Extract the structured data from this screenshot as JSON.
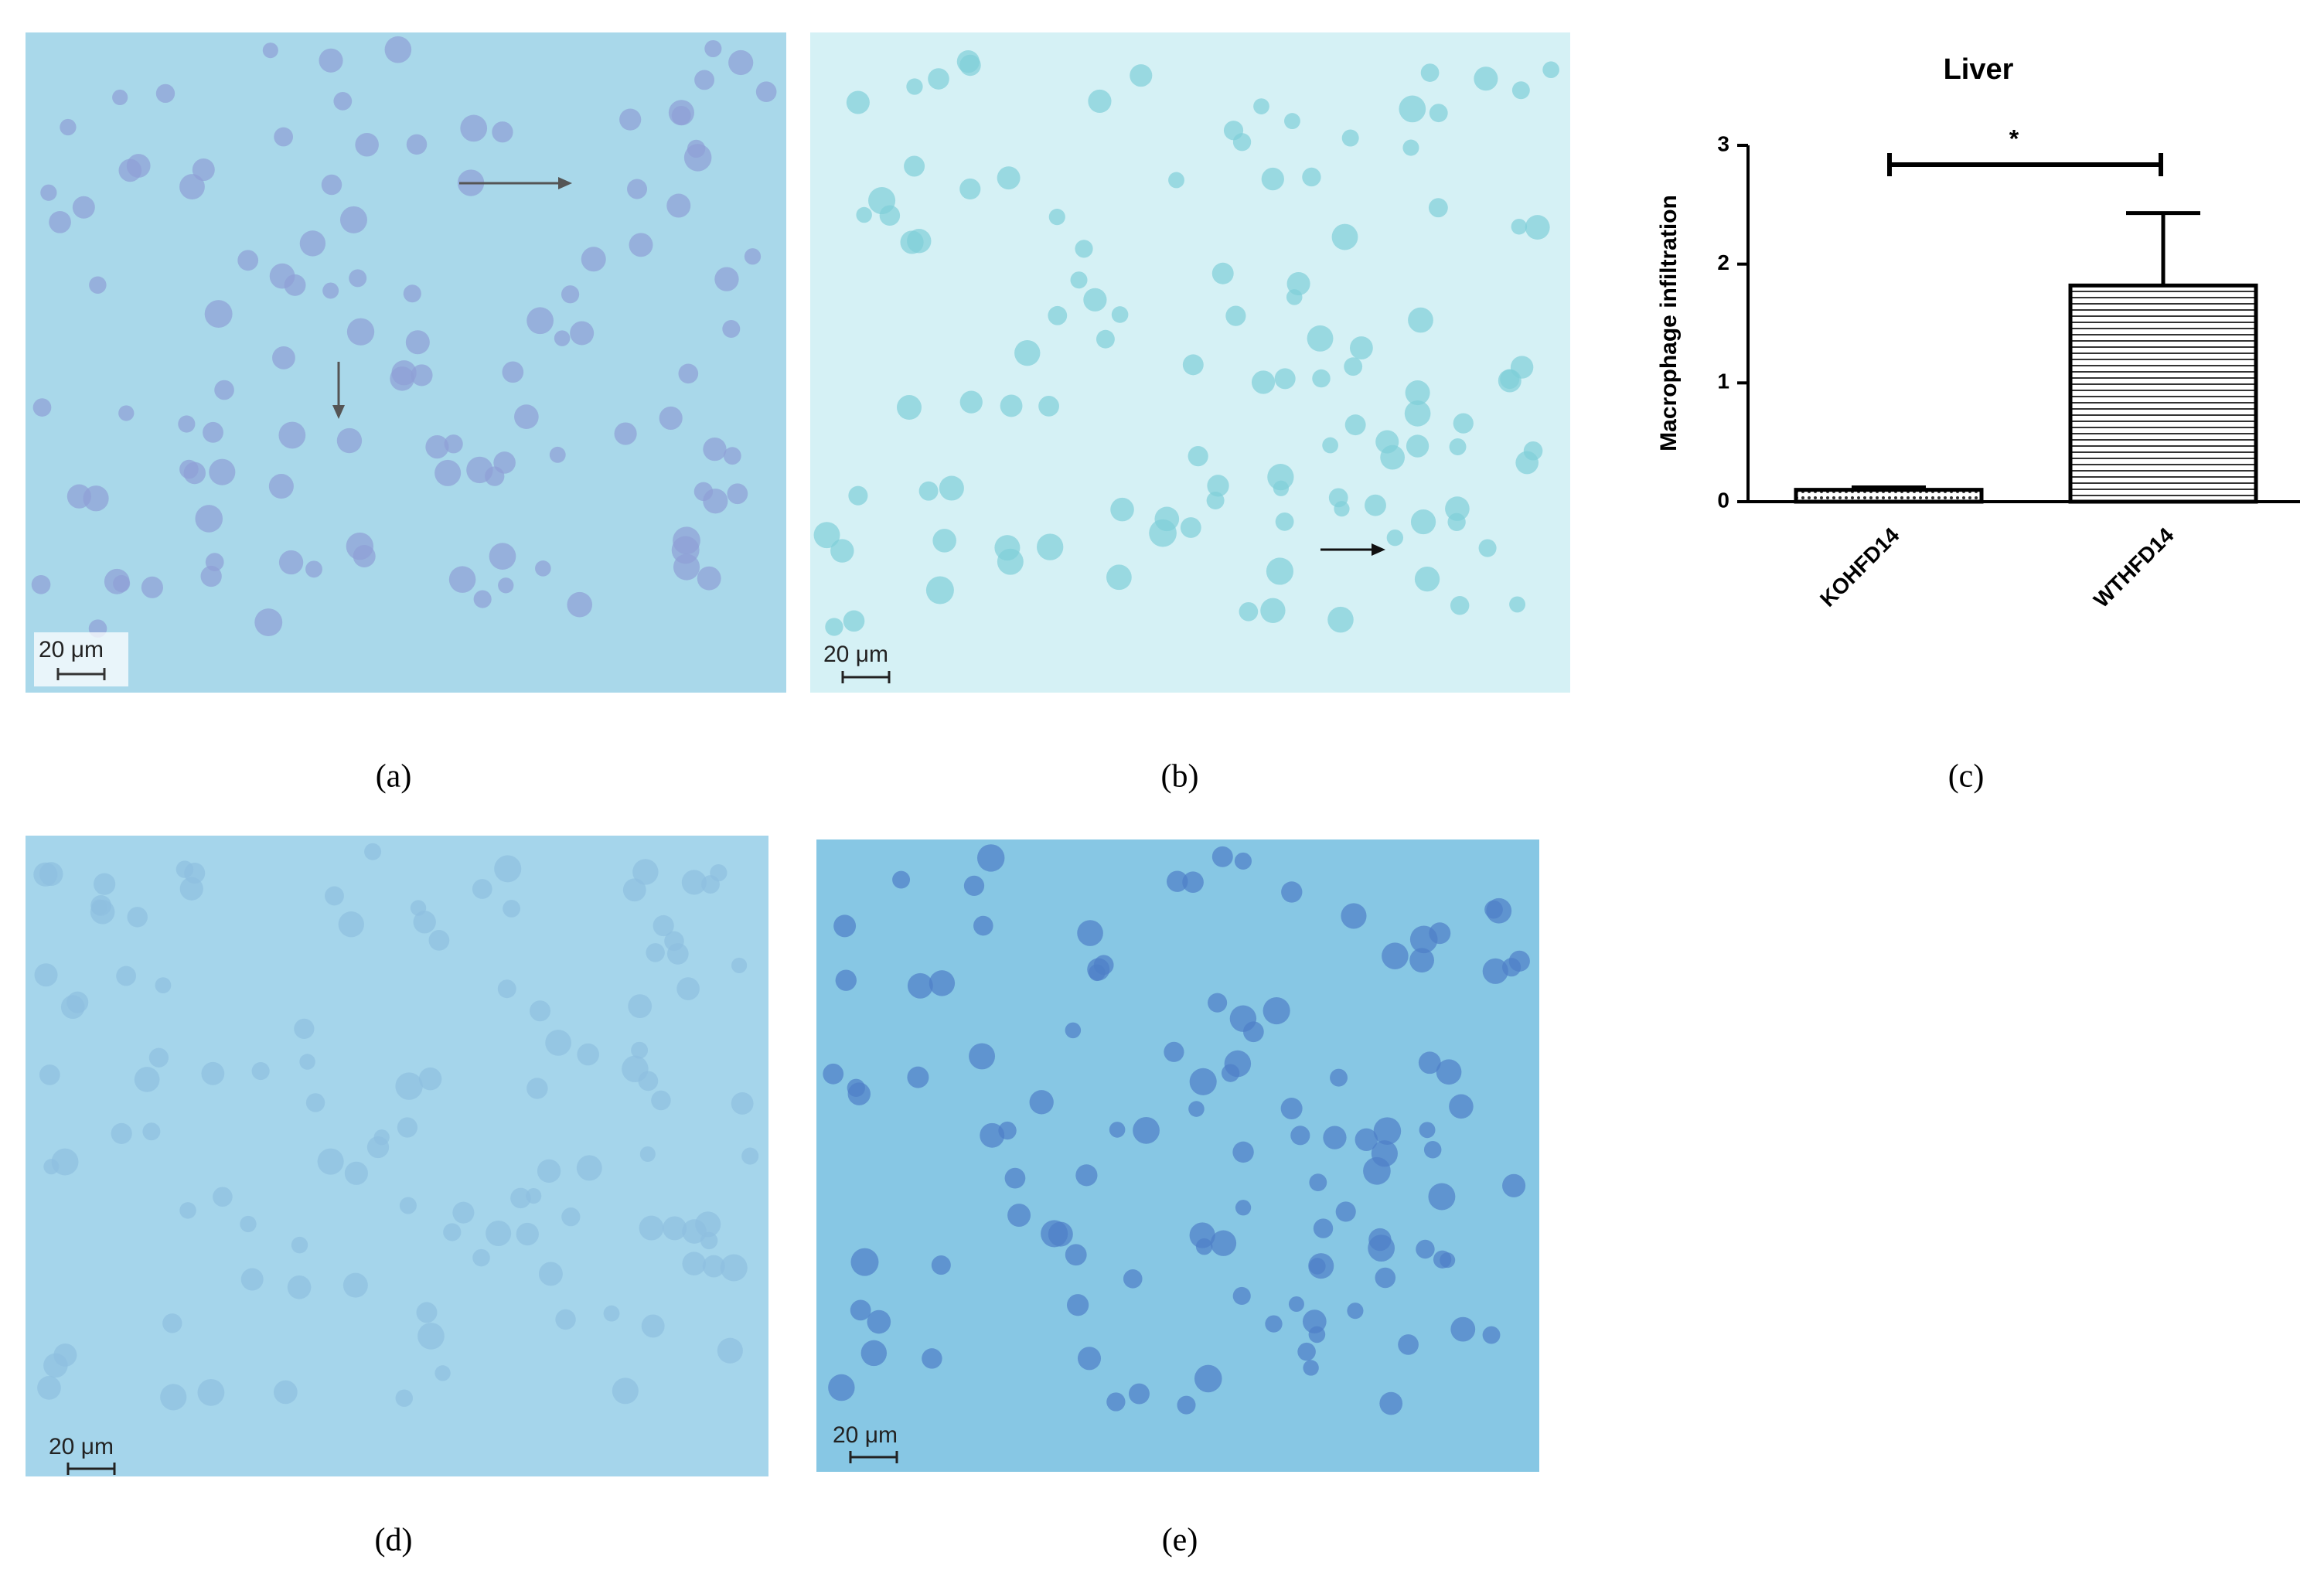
{
  "panel_labels": [
    "(a)",
    "(b)",
    "(c)",
    "(d)",
    "(e)"
  ],
  "scale_bars": [
    "20 μm",
    "20 μm",
    "20 μm",
    "20 μm"
  ],
  "chart_data": {
    "type": "bar",
    "title": "Liver",
    "y_label": "Macrophage infiltration",
    "categories": [
      "KOHFD14",
      "WTHFD14"
    ],
    "values": [
      0.1,
      1.82
    ],
    "errors": [
      0.02,
      0.61
    ],
    "ylim": [
      0,
      3
    ],
    "yticks": [
      0,
      1,
      2,
      3
    ],
    "annotation": "*",
    "color": "#000000"
  }
}
